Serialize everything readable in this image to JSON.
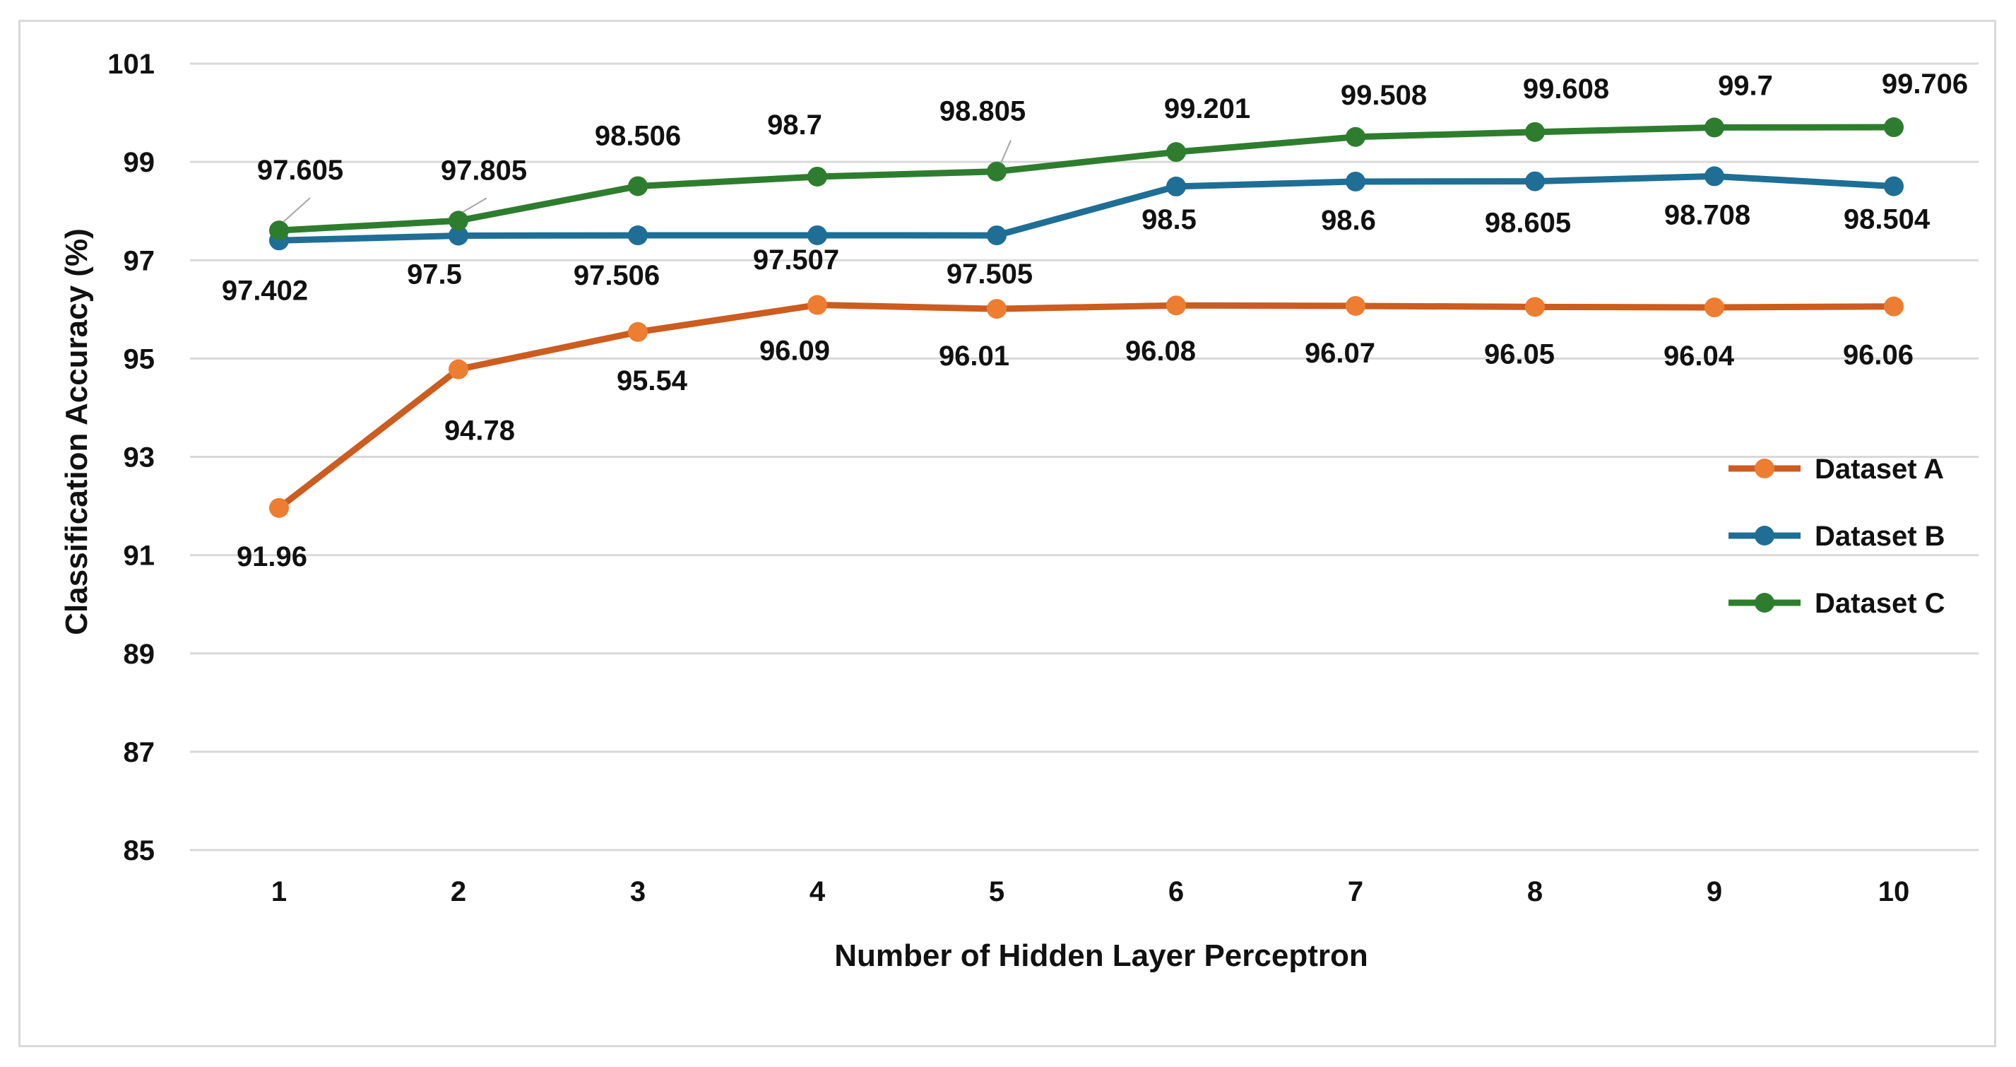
{
  "chart_data": {
    "type": "line",
    "title": "",
    "xlabel": "Number of Hidden Layer Perceptron",
    "ylabel": "Classification Accuracy (%)",
    "x": [
      1,
      2,
      3,
      4,
      5,
      6,
      7,
      8,
      9,
      10
    ],
    "x_tick_labels": [
      "1",
      "2",
      "3",
      "4",
      "5",
      "6",
      "7",
      "8",
      "9",
      "10"
    ],
    "ylim": [
      85,
      101
    ],
    "y_ticks": [
      85,
      87,
      89,
      91,
      93,
      95,
      97,
      99,
      101
    ],
    "y_tick_labels": [
      "85",
      "87",
      "89",
      "91",
      "93",
      "95",
      "97",
      "99",
      "101"
    ],
    "grid": true,
    "legend": "right",
    "series": [
      {
        "name": "Dataset A",
        "color": "#cc5c1f",
        "marker_color": "#ed7d31",
        "values": [
          91.96,
          94.78,
          95.54,
          96.09,
          96.01,
          96.08,
          96.07,
          96.05,
          96.04,
          96.06
        ],
        "labels": [
          "91.96",
          "94.78",
          "95.54",
          "96.09",
          "96.01",
          "96.08",
          "96.07",
          "96.05",
          "96.04",
          "96.06"
        ]
      },
      {
        "name": "Dataset B",
        "color": "#1f6e96",
        "marker_color": "#1f6e96",
        "values": [
          97.402,
          97.5,
          97.506,
          97.507,
          97.505,
          98.5,
          98.6,
          98.605,
          98.708,
          98.504
        ],
        "labels": [
          "97.402",
          "97.5",
          "97.506",
          "97.507",
          "97.505",
          "98.5",
          "98.6",
          "98.605",
          "98.708",
          "98.504"
        ]
      },
      {
        "name": "Dataset C",
        "color": "#2e7d2e",
        "marker_color": "#2e7d2e",
        "values": [
          97.605,
          97.805,
          98.506,
          98.7,
          98.805,
          99.201,
          99.508,
          99.608,
          99.7,
          99.706
        ],
        "labels": [
          "97.605",
          "97.805",
          "98.506",
          "98.7",
          "98.805",
          "99.201",
          "99.508",
          "99.608",
          "99.7",
          "99.706"
        ]
      }
    ]
  }
}
